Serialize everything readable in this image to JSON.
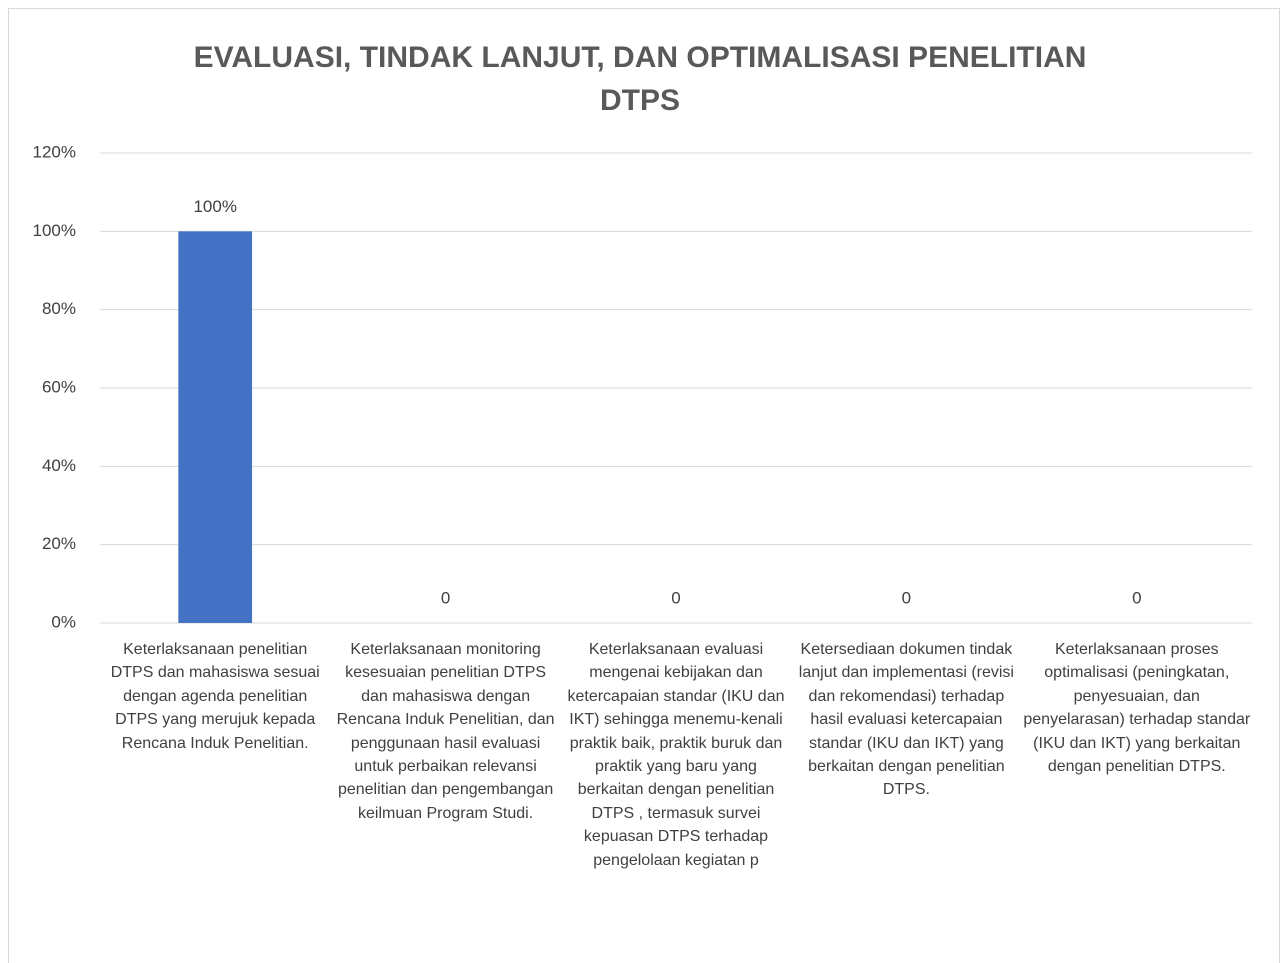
{
  "chart_data": {
    "type": "bar",
    "title": "EVALUASI, TINDAK LANJUT, DAN OPTIMALISASI PENELITIAN DTPS",
    "categories": [
      "Keterlaksanaan penelitian DTPS dan mahasiswa sesuai dengan agenda penelitian DTPS yang merujuk kepada Rencana Induk Penelitian.",
      "Keterlaksanaan monitoring kesesuaian penelitian DTPS dan mahasiswa dengan Rencana Induk Penelitian, dan penggunaan hasil evaluasi untuk perbaikan relevansi penelitian dan pengembangan keilmuan Program Studi.",
      "Keterlaksanaan evaluasi mengenai kebijakan dan ketercapaian standar (IKU dan IKT) sehingga menemu-kenali praktik baik, praktik buruk dan praktik yang baru yang berkaitan dengan penelitian DTPS , termasuk survei kepuasan DTPS terhadap pengelolaan kegiatan p",
      "Ketersediaan dokumen tindak lanjut dan implementasi (revisi dan rekomendasi) terhadap hasil evaluasi ketercapaian standar (IKU dan IKT) yang berkaitan dengan penelitian DTPS.",
      "Keterlaksanaan proses optimalisasi (peningkatan, penyesuaian, dan penyelarasan) terhadap standar (IKU dan IKT) yang berkaitan dengan penelitian DTPS."
    ],
    "values": [
      100,
      0,
      0,
      0,
      0
    ],
    "value_labels": [
      "100%",
      "0",
      "0",
      "0",
      "0"
    ],
    "color": "#4472c4",
    "ylim": [
      0,
      120
    ],
    "yticks": [
      {
        "value": 0,
        "label": "0%"
      },
      {
        "value": 20,
        "label": "20%"
      },
      {
        "value": 40,
        "label": "40%"
      },
      {
        "value": 60,
        "label": "60%"
      },
      {
        "value": 80,
        "label": "80%"
      },
      {
        "value": 100,
        "label": "100%"
      },
      {
        "value": 120,
        "label": "120%"
      }
    ],
    "grid": true
  }
}
